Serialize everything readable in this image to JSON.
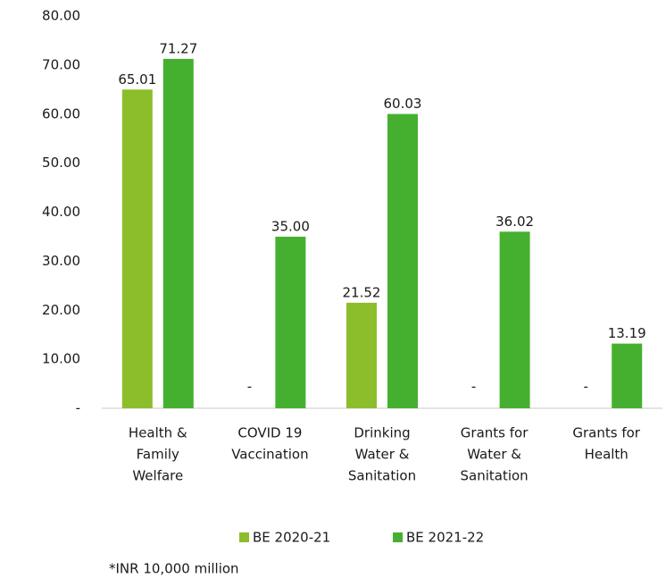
{
  "chart_data": {
    "type": "bar",
    "categories": [
      [
        "Health &",
        "Family",
        "Welfare"
      ],
      [
        "COVID 19",
        "Vaccination"
      ],
      [
        "Drinking",
        "Water &",
        "Sanitation"
      ],
      [
        "Grants for",
        "Water &",
        "Sanitation"
      ],
      [
        "Grants for",
        "Health"
      ]
    ],
    "series": [
      {
        "name": "BE 2020-21",
        "color": "#8cbd2a",
        "values": [
          65.01,
          null,
          21.52,
          null,
          null
        ],
        "value_labels": [
          "65.01",
          "-",
          "21.52",
          "-",
          "-"
        ]
      },
      {
        "name": "BE 2021-22",
        "color": "#45b02f",
        "values": [
          71.27,
          35,
          60.03,
          36.02,
          13.19
        ],
        "value_labels": [
          "71.27",
          "35.00",
          "60.03",
          "36.02",
          "13.19"
        ]
      }
    ],
    "ylim": [
      0,
      80
    ],
    "yticks": [
      {
        "value": 0,
        "label": "-"
      },
      {
        "value": 10,
        "label": "10.00"
      },
      {
        "value": 20,
        "label": "20.00"
      },
      {
        "value": 30,
        "label": "30.00"
      },
      {
        "value": 40,
        "label": "40.00"
      },
      {
        "value": 50,
        "label": "50.00"
      },
      {
        "value": 60,
        "label": "60.00"
      },
      {
        "value": 70,
        "label": "70.00"
      },
      {
        "value": 80,
        "label": "80.00"
      }
    ],
    "legend": "bottom",
    "footnote": "*INR 10,000 million"
  }
}
